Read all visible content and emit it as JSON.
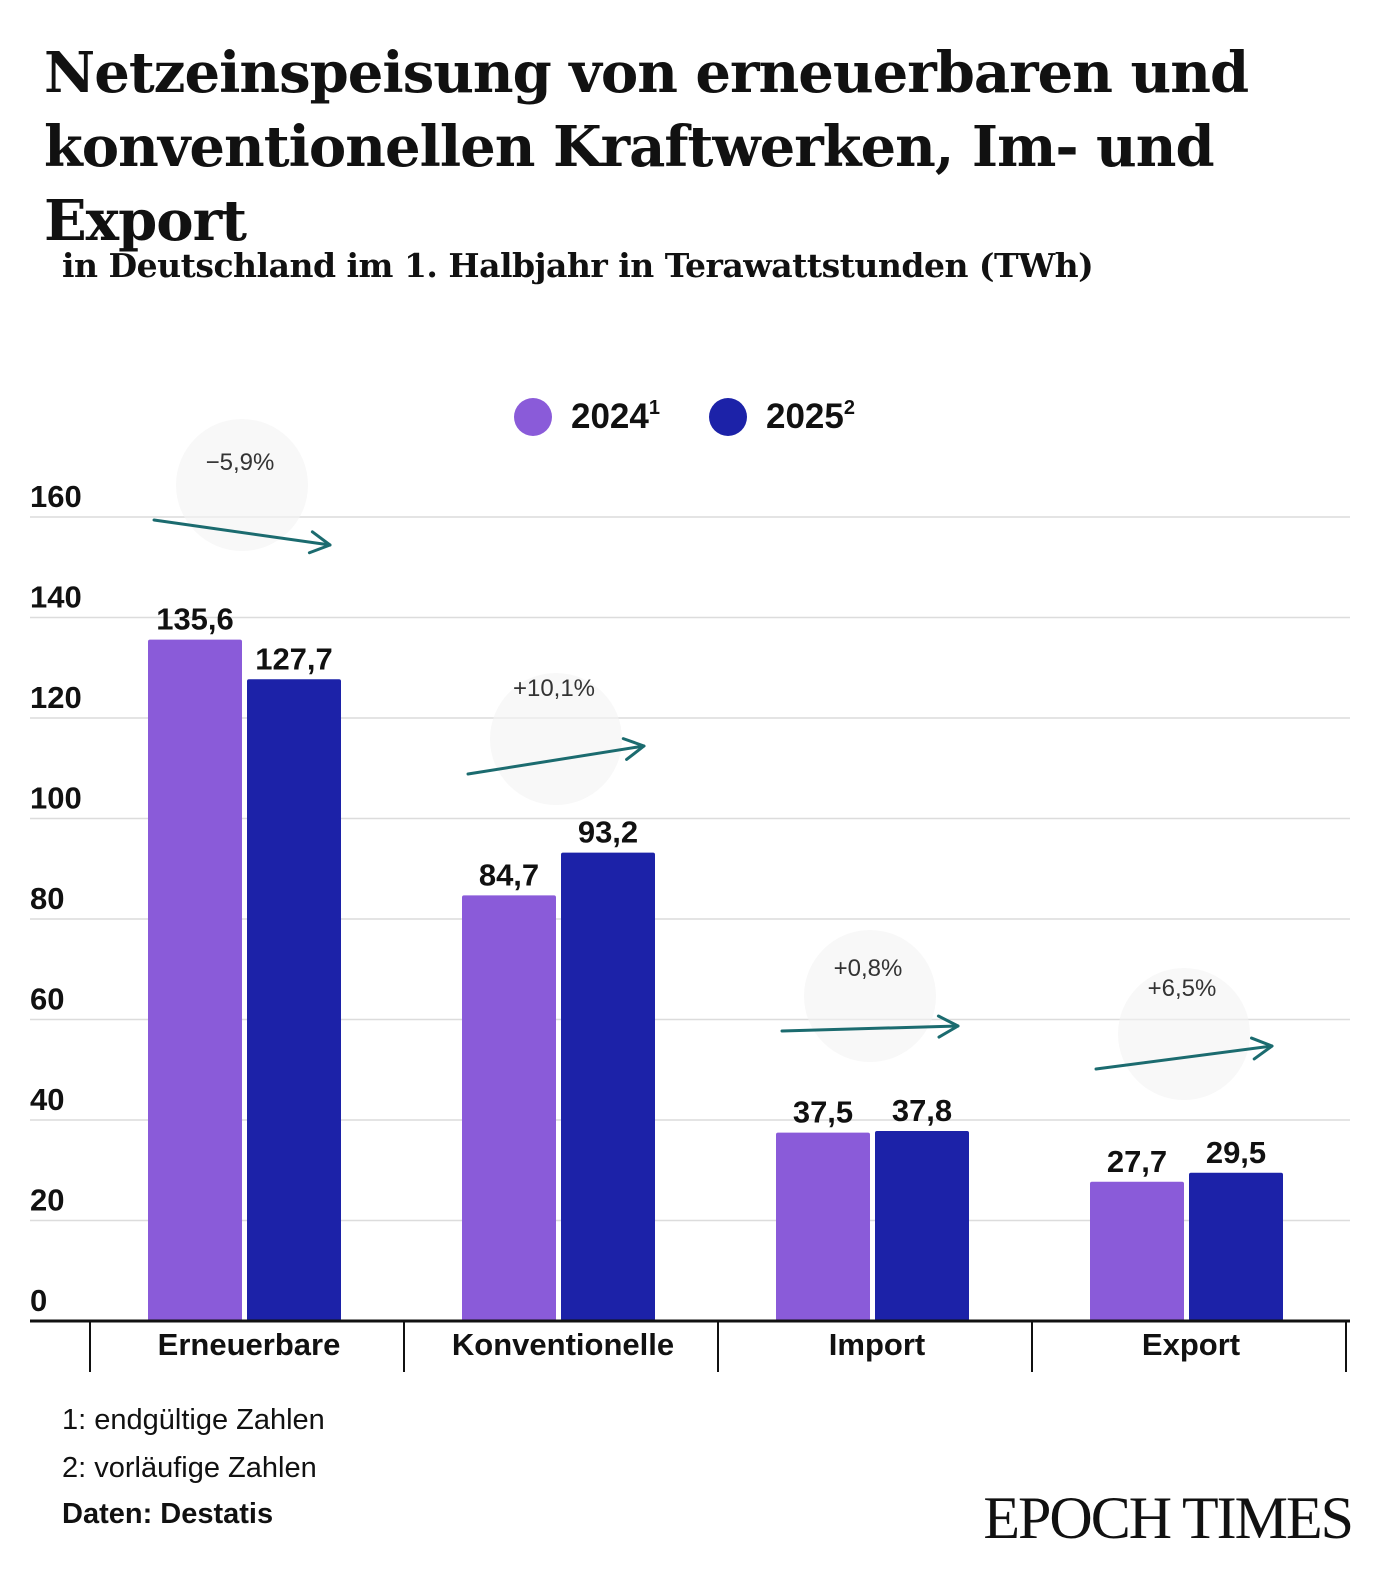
{
  "header": {
    "title": "Netzeinspeisung von erneuerbaren und konventionellen Kraftwerken, Im- und Export",
    "subtitle": "in Deutschland im 1. Halbjahr in Terawattstunden (TWh)"
  },
  "colors": {
    "s2024": "#8a5bd9",
    "s2025": "#1c22a8",
    "arrow": "#1b6b6f",
    "grid": "#dcdcdc",
    "axis": "#111111"
  },
  "chart_data": {
    "type": "bar",
    "categories": [
      "Erneuerbare",
      "Konventionelle",
      "Import",
      "Export"
    ],
    "series": [
      {
        "name": "2024",
        "sup": "1",
        "values": [
          135.6,
          84.7,
          37.5,
          27.7
        ],
        "labels": [
          "135,6",
          "84,7",
          "37,5",
          "27,7"
        ]
      },
      {
        "name": "2025",
        "sup": "2",
        "values": [
          127.7,
          93.2,
          37.8,
          29.5
        ],
        "labels": [
          "127,7",
          "93,2",
          "37,8",
          "29,5"
        ]
      }
    ],
    "changes": [
      "−5,9%",
      "+10,1%",
      "+0,8%",
      "+6,5%"
    ],
    "yticks": [
      0,
      20,
      40,
      60,
      80,
      100,
      120,
      140,
      160
    ],
    "ylim": [
      0,
      160
    ],
    "grid": true,
    "legend": "top-center"
  },
  "footnotes": [
    "1: endgültige Zahlen",
    "2: vorläufige Zahlen"
  ],
  "source": "Daten: Destatis",
  "logo": "EPOCH TIMES"
}
